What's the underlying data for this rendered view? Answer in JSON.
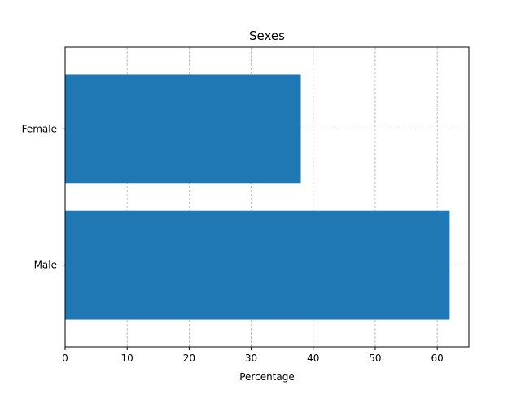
{
  "chart_data": {
    "type": "bar",
    "orientation": "horizontal",
    "title": "Sexes",
    "xlabel": "Percentage",
    "ylabel": "",
    "categories": [
      "Male",
      "Female"
    ],
    "values": [
      62,
      38
    ],
    "xlim": [
      0,
      65.1
    ],
    "xticks": [
      "0",
      "10",
      "20",
      "30",
      "40",
      "50",
      "60"
    ],
    "grid": true,
    "grid_style": "dashed",
    "bar_color": "#1f77b4",
    "grid_color": "#b0b0b0",
    "legend": "none"
  }
}
